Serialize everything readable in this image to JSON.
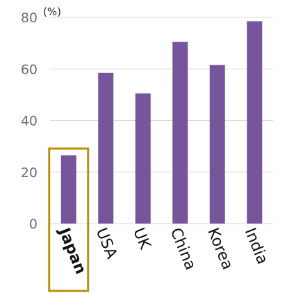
{
  "chart_data": {
    "type": "bar",
    "categories": [
      "Japan",
      "USA",
      "UK",
      "China",
      "Korea",
      "India"
    ],
    "values": [
      26.5,
      58.5,
      50.5,
      70.5,
      61.5,
      78.5
    ],
    "unit": "(%)",
    "ylim": [
      0,
      80
    ],
    "yticks": [
      "0",
      "20",
      "40",
      "60",
      "80"
    ],
    "grid": true,
    "highlight_category": "Japan",
    "colors": {
      "bar": "#76559a",
      "highlight_box": "#b8900a",
      "grid": "#d9d9d9"
    }
  }
}
